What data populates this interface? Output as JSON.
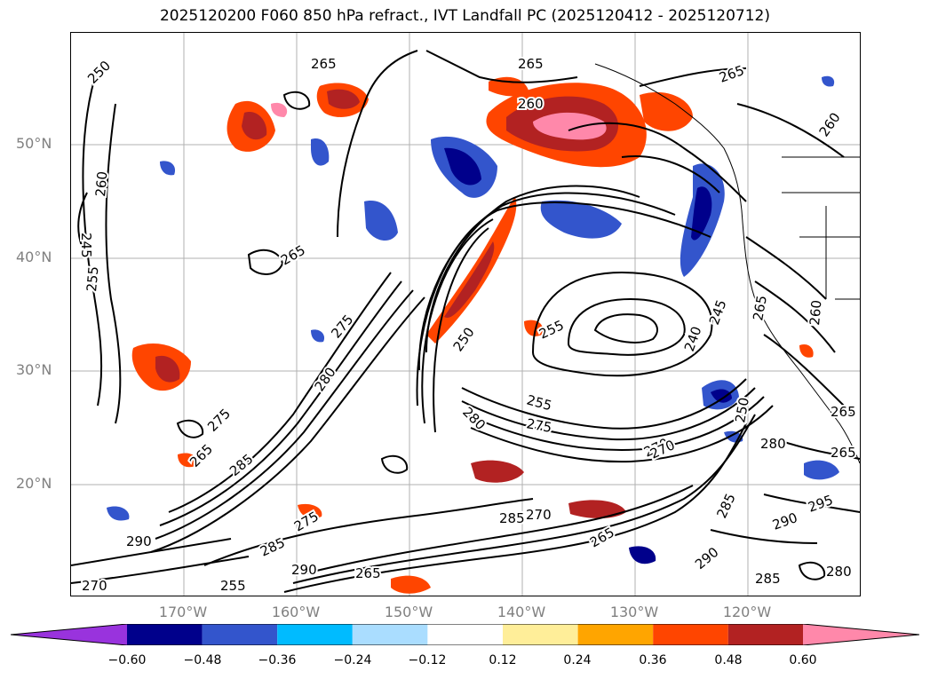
{
  "title": "2025120200 F060 850 hPa refract., IVT Landfall PC (2025120412 - 2025120712)",
  "map": {
    "lat_labels": [
      "50°N",
      "40°N",
      "30°N",
      "20°N"
    ],
    "lon_labels": [
      "170°W",
      "160°W",
      "150°W",
      "140°W",
      "130°W",
      "120°W"
    ],
    "contour_labels": [
      "265",
      "250",
      "260",
      "245",
      "255",
      "260",
      "265",
      "265",
      "255",
      "250",
      "275",
      "280",
      "285",
      "275",
      "265",
      "290",
      "285",
      "280",
      "275",
      "270",
      "265",
      "255",
      "240",
      "245",
      "250",
      "265",
      "280",
      "270",
      "285",
      "290",
      "295",
      "290",
      "285",
      "280",
      "290",
      "265",
      "265",
      "260",
      "270",
      "255",
      "265",
      "265",
      "275",
      "260",
      "270",
      "285"
    ]
  },
  "colorbar": {
    "colors": [
      "#9933dd",
      "#00008b",
      "#3355cc",
      "#00bbff",
      "#aaddff",
      "#ffffff",
      "#ffee99",
      "#ffa500",
      "#ff4500",
      "#b22222",
      "#ff88aa"
    ],
    "tick_labels": [
      "−0.60",
      "−0.48",
      "−0.36",
      "−0.24",
      "−0.12",
      "0.12",
      "0.24",
      "0.36",
      "0.48",
      "0.60"
    ]
  }
}
